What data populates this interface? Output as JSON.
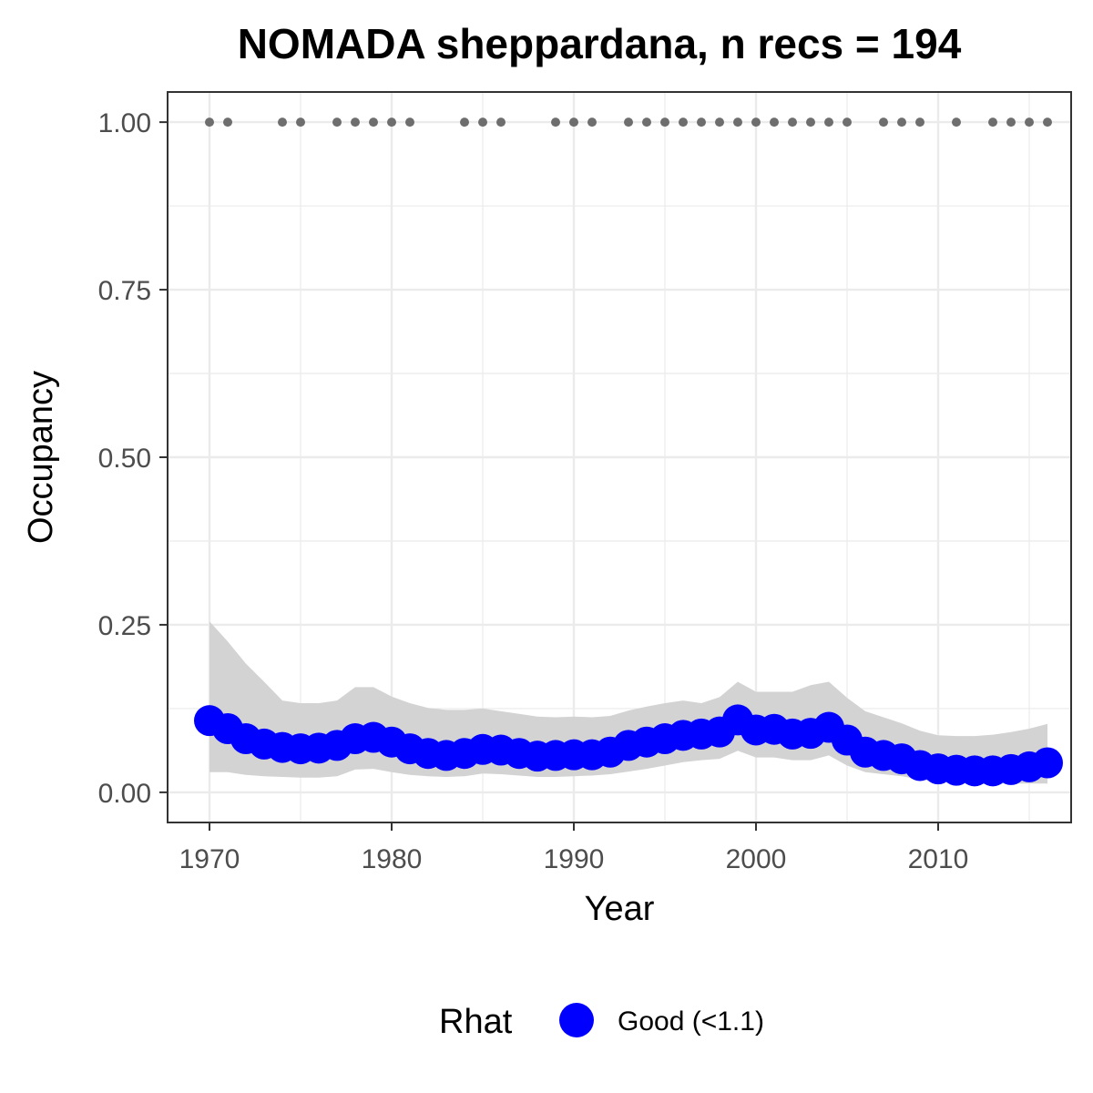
{
  "chart_data": {
    "type": "line",
    "title": "NOMADA sheppardana, n recs = 194",
    "xlabel": "Year",
    "ylabel": "Occupancy",
    "xlim": [
      1967.7,
      2017.3
    ],
    "ylim": [
      -0.045,
      1.045
    ],
    "x_ticks": [
      1970,
      1980,
      1990,
      2000,
      2010
    ],
    "x_tick_labels": [
      "1970",
      "1980",
      "1990",
      "2000",
      "2010"
    ],
    "y_ticks": [
      0,
      0.25,
      0.5,
      0.75,
      1.0
    ],
    "y_tick_labels": [
      "0.00",
      "0.25",
      "0.50",
      "0.75",
      "1.00"
    ],
    "grid": true,
    "legend": {
      "title": "Rhat",
      "position": "bottom",
      "entries": [
        {
          "label": "Good (<1.1)",
          "color": "#0000ff"
        }
      ]
    },
    "colors": {
      "series": "#0000ff",
      "ribbon": "#d3d3d3",
      "record_dots": "#6e6e6e",
      "grid": "#ebebeb",
      "panel_border": "#333333"
    },
    "series": [
      {
        "x": [
          1970,
          1971,
          1972,
          1973,
          1974,
          1975,
          1976,
          1977,
          1978,
          1979,
          1980,
          1981,
          1982,
          1983,
          1984,
          1985,
          1986,
          1987,
          1988,
          1989,
          1990,
          1991,
          1992,
          1993,
          1994,
          1995,
          1996,
          1997,
          1998,
          1999,
          2000,
          2001,
          2002,
          2003,
          2004,
          2005,
          2006,
          2007,
          2008,
          2009,
          2010,
          2011,
          2012,
          2013,
          2014,
          2015,
          2016
        ],
        "y": [
          0.107,
          0.095,
          0.08,
          0.072,
          0.067,
          0.065,
          0.066,
          0.07,
          0.08,
          0.082,
          0.075,
          0.065,
          0.058,
          0.055,
          0.058,
          0.064,
          0.063,
          0.058,
          0.054,
          0.055,
          0.056,
          0.056,
          0.06,
          0.07,
          0.075,
          0.08,
          0.085,
          0.087,
          0.09,
          0.108,
          0.093,
          0.094,
          0.087,
          0.088,
          0.097,
          0.078,
          0.06,
          0.055,
          0.05,
          0.04,
          0.035,
          0.033,
          0.032,
          0.032,
          0.034,
          0.038,
          0.044
        ],
        "lower": [
          0.03,
          0.03,
          0.026,
          0.024,
          0.023,
          0.022,
          0.022,
          0.024,
          0.034,
          0.035,
          0.03,
          0.026,
          0.024,
          0.023,
          0.024,
          0.028,
          0.027,
          0.025,
          0.023,
          0.023,
          0.024,
          0.025,
          0.027,
          0.031,
          0.035,
          0.04,
          0.045,
          0.048,
          0.05,
          0.062,
          0.052,
          0.052,
          0.048,
          0.048,
          0.055,
          0.04,
          0.03,
          0.027,
          0.024,
          0.019,
          0.016,
          0.015,
          0.014,
          0.013,
          0.013,
          0.013,
          0.013
        ],
        "upper": [
          0.255,
          0.225,
          0.192,
          0.165,
          0.137,
          0.133,
          0.133,
          0.137,
          0.157,
          0.157,
          0.143,
          0.133,
          0.126,
          0.123,
          0.123,
          0.125,
          0.121,
          0.117,
          0.113,
          0.112,
          0.113,
          0.112,
          0.114,
          0.122,
          0.128,
          0.133,
          0.137,
          0.133,
          0.142,
          0.165,
          0.15,
          0.15,
          0.15,
          0.16,
          0.165,
          0.141,
          0.121,
          0.112,
          0.103,
          0.092,
          0.085,
          0.084,
          0.084,
          0.086,
          0.09,
          0.095,
          0.102
        ]
      }
    ],
    "record_years": {
      "y": 1.0,
      "x": [
        1970,
        1971,
        1974,
        1975,
        1977,
        1978,
        1979,
        1980,
        1981,
        1984,
        1985,
        1986,
        1989,
        1990,
        1991,
        1993,
        1994,
        1995,
        1996,
        1997,
        1998,
        1999,
        2000,
        2001,
        2002,
        2003,
        2004,
        2005,
        2007,
        2008,
        2009,
        2011,
        2013,
        2014,
        2015,
        2016
      ]
    }
  }
}
